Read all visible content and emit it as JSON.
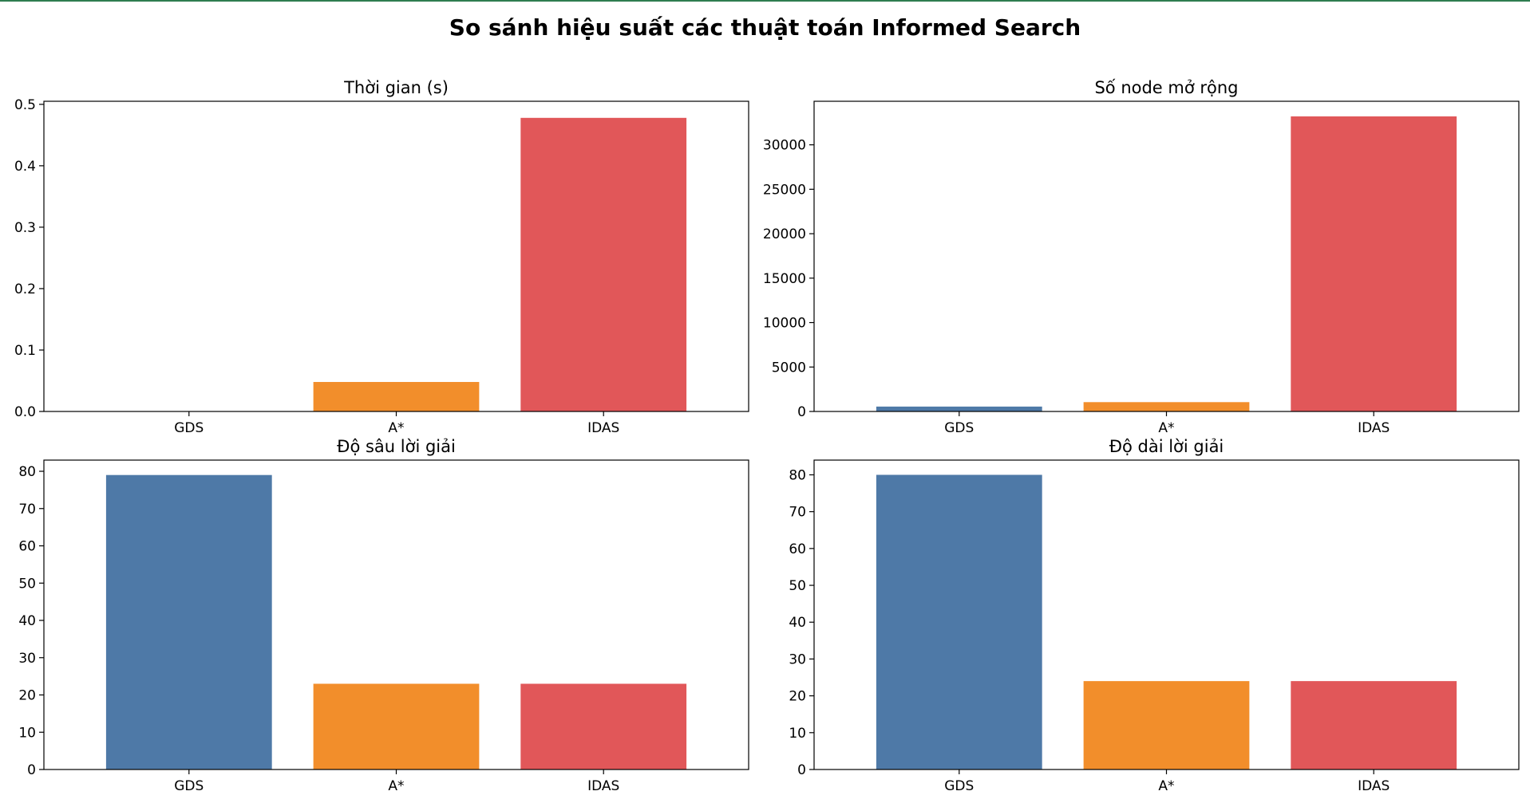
{
  "figure": {
    "title": "So sánh hiệu suất các thuật toán Informed Search"
  },
  "colors": {
    "GDS": "#4e79a7",
    "A*": "#f28e2b",
    "IDAS": "#e15759"
  },
  "chart_data": [
    {
      "type": "bar",
      "title": "Thời gian (s)",
      "categories": [
        "GDS",
        "A*",
        "IDAS"
      ],
      "values": [
        0.0005,
        0.048,
        0.478
      ],
      "ylim": [
        0,
        0.505
      ],
      "yticks": [
        0,
        0.1,
        0.2,
        0.3,
        0.4,
        0.5
      ],
      "ytick_labels": [
        "0.0",
        "0.1",
        "0.2",
        "0.3",
        "0.4",
        "0.5"
      ],
      "xlabel": "",
      "ylabel": "",
      "grid": false
    },
    {
      "type": "bar",
      "title": "Số node mở rộng",
      "categories": [
        "GDS",
        "A*",
        "IDAS"
      ],
      "values": [
        550,
        1050,
        33200
      ],
      "ylim": [
        0,
        34900
      ],
      "yticks": [
        0,
        5000,
        10000,
        15000,
        20000,
        25000,
        30000
      ],
      "ytick_labels": [
        "0",
        "5000",
        "10000",
        "15000",
        "20000",
        "25000",
        "30000"
      ],
      "xlabel": "",
      "ylabel": "",
      "grid": false
    },
    {
      "type": "bar",
      "title": "Độ sâu lời giải",
      "categories": [
        "GDS",
        "A*",
        "IDAS"
      ],
      "values": [
        79,
        23,
        23
      ],
      "ylim": [
        0,
        83
      ],
      "yticks": [
        0,
        10,
        20,
        30,
        40,
        50,
        60,
        70,
        80
      ],
      "ytick_labels": [
        "0",
        "10",
        "20",
        "30",
        "40",
        "50",
        "60",
        "70",
        "80"
      ],
      "xlabel": "",
      "ylabel": "",
      "grid": false
    },
    {
      "type": "bar",
      "title": "Độ dài lời giải",
      "categories": [
        "GDS",
        "A*",
        "IDAS"
      ],
      "values": [
        80,
        24,
        24
      ],
      "ylim": [
        0,
        84
      ],
      "yticks": [
        0,
        10,
        20,
        30,
        40,
        50,
        60,
        70,
        80
      ],
      "ytick_labels": [
        "0",
        "10",
        "20",
        "30",
        "40",
        "50",
        "60",
        "70",
        "80"
      ],
      "xlabel": "",
      "ylabel": "",
      "grid": false
    }
  ]
}
